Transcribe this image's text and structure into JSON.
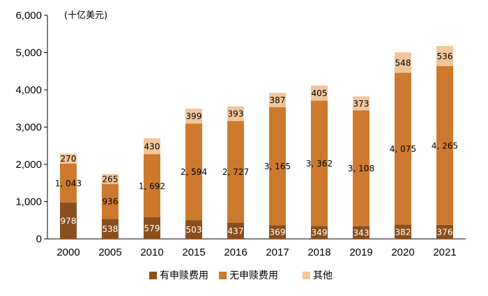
{
  "chart_data": {
    "type": "bar",
    "stacked": true,
    "unit_label": "(十亿美元)",
    "categories": [
      "2000",
      "2005",
      "2010",
      "2015",
      "2016",
      "2017",
      "2018",
      "2019",
      "2020",
      "2021"
    ],
    "ylim": [
      0,
      6000
    ],
    "yticks": [
      0,
      1000,
      2000,
      3000,
      4000,
      5000,
      6000
    ],
    "ytick_labels": [
      "0",
      "1,000",
      "2,000",
      "3,000",
      "4,000",
      "5,000",
      "6,000"
    ],
    "legend_position": "bottom-center",
    "grid": false,
    "series": [
      {
        "name": "有申赎费用",
        "color": "#8B4F1D",
        "label_color": "#ffffff",
        "values": [
          978,
          538,
          579,
          503,
          437,
          369,
          349,
          343,
          382,
          376
        ],
        "labels": [
          "978",
          "538",
          "579",
          "503",
          "437",
          "369",
          "349",
          "343",
          "382",
          "376"
        ]
      },
      {
        "name": "无申赎费用",
        "color": "#CD7A2E",
        "label_color": "#000000",
        "values": [
          1043,
          936,
          1692,
          2594,
          2727,
          3165,
          3362,
          3108,
          4075,
          4265
        ],
        "labels": [
          "1, 043",
          "936",
          "1, 692",
          "2, 594",
          "2, 727",
          "3, 165",
          "3, 362",
          "3, 108",
          "4, 075",
          "4, 265"
        ]
      },
      {
        "name": "其他",
        "color": "#F2C69B",
        "label_color": "#000000",
        "values": [
          270,
          265,
          430,
          399,
          393,
          387,
          405,
          373,
          548,
          536
        ],
        "labels": [
          "270",
          "265",
          "430",
          "399",
          "393",
          "387",
          "405",
          "373",
          "548",
          "536"
        ]
      }
    ]
  }
}
